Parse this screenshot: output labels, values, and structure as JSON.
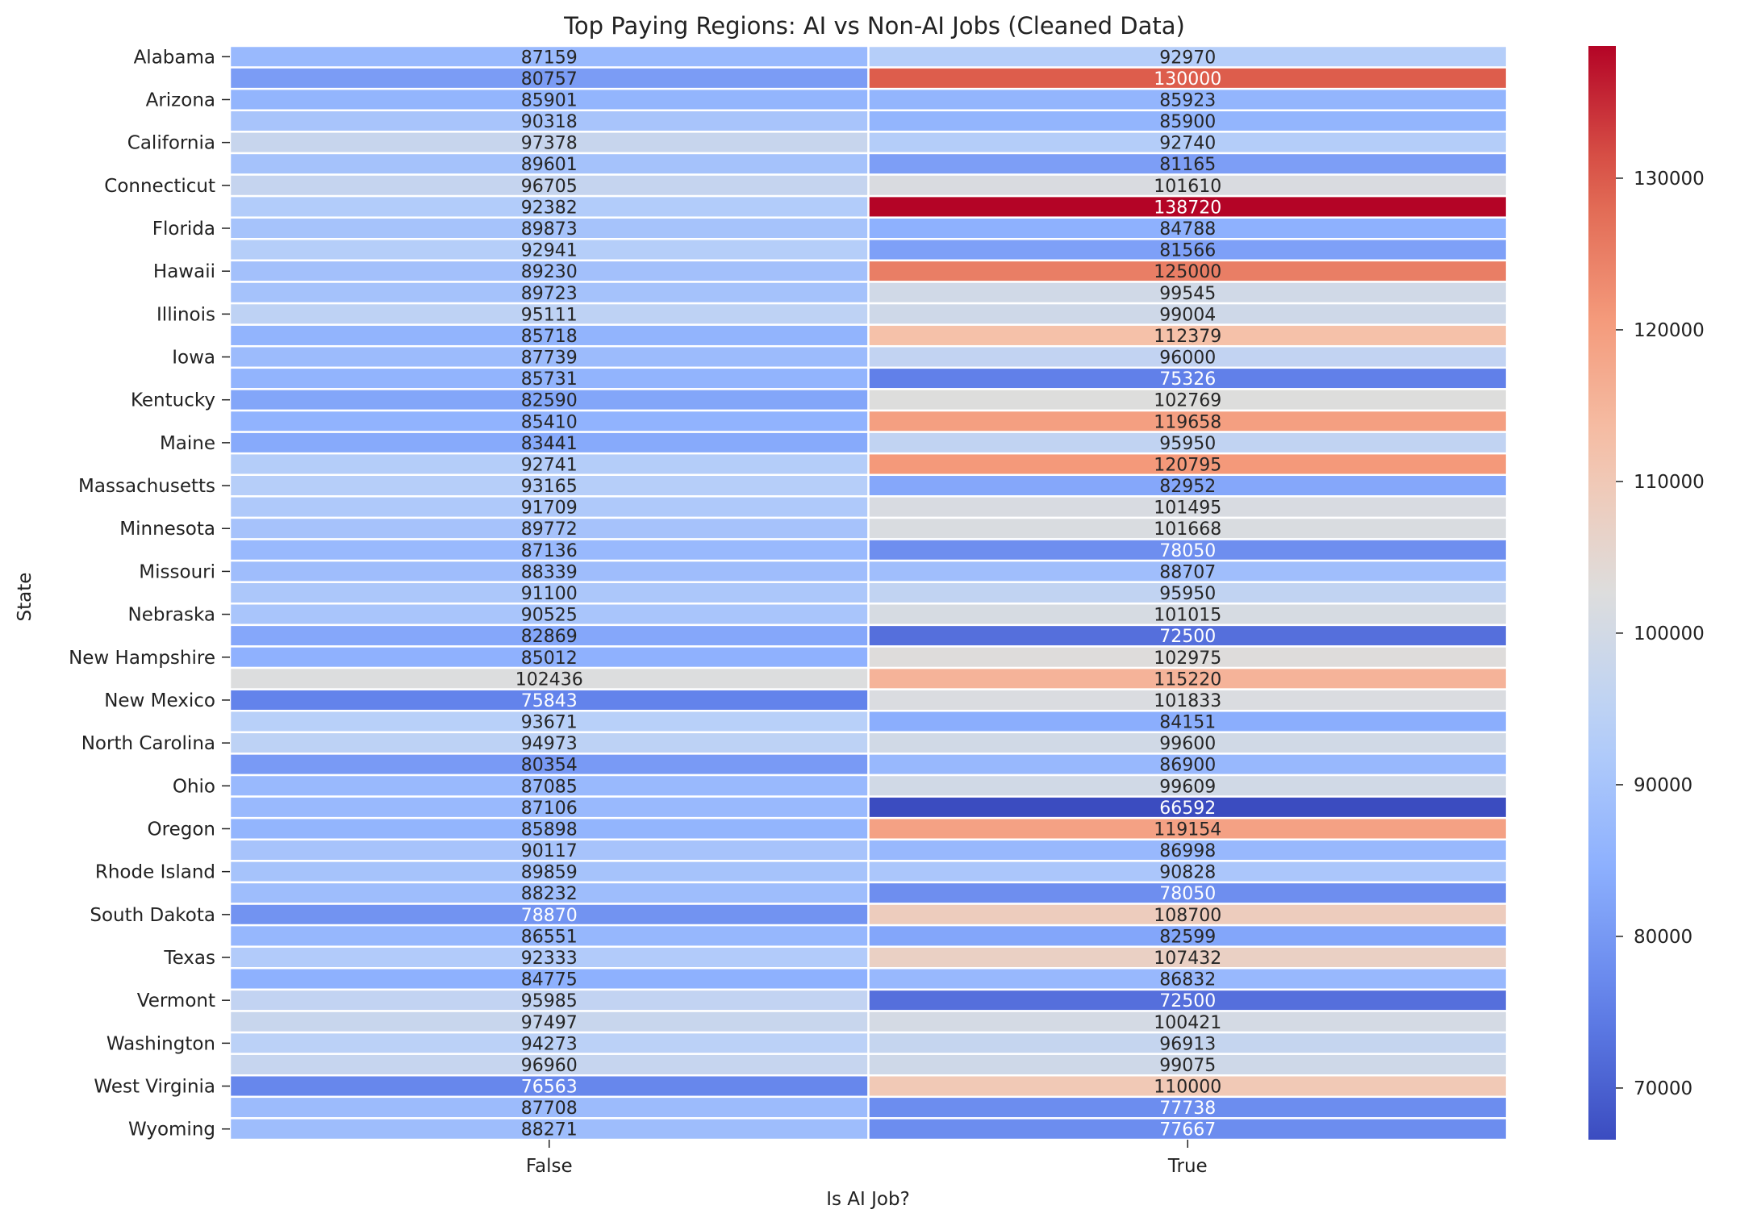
{
  "chart_data": {
    "type": "heatmap",
    "title": "Top Paying Regions: AI vs Non-AI Jobs (Cleaned Data)",
    "xlabel": "Is AI Job?",
    "ylabel": "State",
    "x_categories": [
      "False",
      "True"
    ],
    "y_tick_labels": [
      "Alabama",
      "Arizona",
      "California",
      "Connecticut",
      "Florida",
      "Hawaii",
      "Illinois",
      "Iowa",
      "Kentucky",
      "Maine",
      "Massachusetts",
      "Minnesota",
      "Missouri",
      "Nebraska",
      "New Hampshire",
      "New Mexico",
      "North Carolina",
      "Ohio",
      "Oregon",
      "Rhode Island",
      "South Dakota",
      "Texas",
      "Vermont",
      "Washington",
      "West Virginia",
      "Wyoming"
    ],
    "y_tick_every": 2,
    "values": [
      [
        87159,
        92970
      ],
      [
        80757,
        130000
      ],
      [
        85901,
        85923
      ],
      [
        90318,
        85900
      ],
      [
        97378,
        92740
      ],
      [
        89601,
        81165
      ],
      [
        96705,
        101610
      ],
      [
        92382,
        138720
      ],
      [
        89873,
        84788
      ],
      [
        92941,
        81566
      ],
      [
        89230,
        125000
      ],
      [
        89723,
        99545
      ],
      [
        95111,
        99004
      ],
      [
        85718,
        112379
      ],
      [
        87739,
        96000
      ],
      [
        85731,
        75326
      ],
      [
        82590,
        102769
      ],
      [
        85410,
        119658
      ],
      [
        83441,
        95950
      ],
      [
        92741,
        120795
      ],
      [
        93165,
        82952
      ],
      [
        91709,
        101495
      ],
      [
        89772,
        101668
      ],
      [
        87136,
        78050
      ],
      [
        88339,
        88707
      ],
      [
        91100,
        95950
      ],
      [
        90525,
        101015
      ],
      [
        82869,
        72500
      ],
      [
        85012,
        102975
      ],
      [
        102436,
        115220
      ],
      [
        75843,
        101833
      ],
      [
        93671,
        84151
      ],
      [
        94973,
        99600
      ],
      [
        80354,
        86900
      ],
      [
        87085,
        99609
      ],
      [
        87106,
        66592
      ],
      [
        85898,
        119154
      ],
      [
        90117,
        86998
      ],
      [
        89859,
        90828
      ],
      [
        88232,
        78050
      ],
      [
        78870,
        108700
      ],
      [
        86551,
        82599
      ],
      [
        92333,
        107432
      ],
      [
        84775,
        86832
      ],
      [
        95985,
        72500
      ],
      [
        97497,
        100421
      ],
      [
        94273,
        96913
      ],
      [
        96960,
        99075
      ],
      [
        76563,
        110000
      ],
      [
        87708,
        77738
      ],
      [
        88271,
        77667
      ]
    ],
    "colormap": "coolwarm",
    "vmin": 66592,
    "vmax": 138720,
    "colorbar_ticks": [
      70000,
      80000,
      90000,
      100000,
      110000,
      120000,
      130000
    ],
    "colors": {
      "low": "#3b4cc0",
      "mid": "#dddddd",
      "high": "#b40426"
    },
    "grid": false,
    "legend": "colorbar-right"
  }
}
